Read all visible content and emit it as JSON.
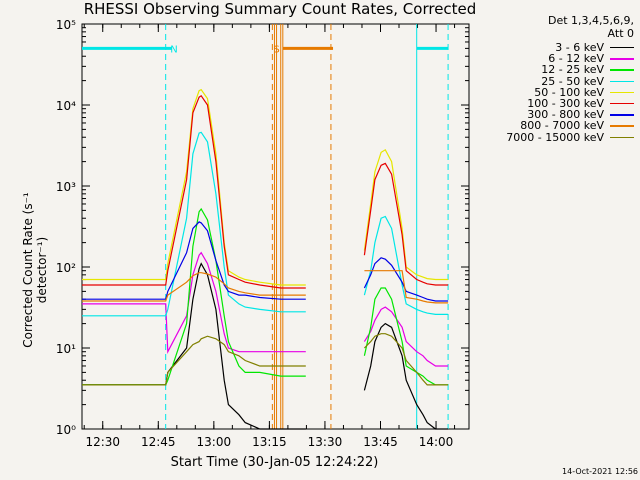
{
  "chart_data": {
    "type": "line",
    "title": "RHESSI Observing Summary Count Rates, Corrected",
    "xlabel": "Start Time (30-Jan-05 12:24:22)",
    "ylabel": "Corrected Count Rate (s⁻¹ detector⁻¹)",
    "x_ticks": [
      "12:30",
      "12:45",
      "13:00",
      "13:15",
      "13:30",
      "13:45",
      "14:00"
    ],
    "y_ticks": [
      "10⁰",
      "10¹",
      "10²",
      "10³",
      "10⁴",
      "10⁵"
    ],
    "ylim": [
      1,
      100000
    ],
    "yscale": "log",
    "detectors": "Det 1,3,4,5,6,9,",
    "attenuator": "Att 0",
    "legend_position": "right",
    "date_stamp": "14-Oct-2021 12:56",
    "series": [
      {
        "name": "3 - 6 keV",
        "color": "#000000",
        "x": [
          0,
          40,
          41,
          50,
          53,
          56,
          57,
          60,
          64,
          68,
          70,
          75,
          78,
          85,
          95,
          107,
          110,
          120,
          130,
          135,
          138,
          140,
          143,
          145,
          148,
          153,
          155,
          160,
          163,
          165,
          169,
          175
        ],
        "y": [
          3.5,
          3.5,
          5,
          10,
          40,
          95,
          110,
          80,
          30,
          4,
          2,
          1.5,
          1.2,
          1,
          1,
          1,
          1,
          1,
          1,
          3,
          6,
          12,
          18,
          20,
          18,
          8,
          4,
          2,
          1.5,
          1.2,
          1,
          1
        ]
      },
      {
        "name": "6 - 12 keV",
        "color": "#e600e6",
        "x": [
          0,
          40,
          41,
          50,
          53,
          56,
          57,
          60,
          64,
          68,
          70,
          75,
          78,
          85,
          95,
          107,
          110,
          120,
          130,
          135,
          138,
          140,
          143,
          145,
          148,
          153,
          155,
          160,
          163,
          165,
          169,
          175
        ],
        "y": [
          35,
          35,
          9,
          25,
          80,
          140,
          150,
          110,
          50,
          15,
          10,
          9,
          9,
          9,
          9,
          9,
          9,
          9,
          9,
          12,
          16,
          22,
          30,
          32,
          28,
          18,
          12,
          9,
          8,
          7,
          6,
          6
        ]
      },
      {
        "name": "12 - 25 keV",
        "color": "#00e600",
        "x": [
          0,
          40,
          41,
          50,
          53,
          56,
          57,
          60,
          64,
          68,
          70,
          75,
          78,
          85,
          95,
          107,
          110,
          120,
          130,
          135,
          138,
          140,
          143,
          145,
          148,
          153,
          155,
          160,
          163,
          165,
          169,
          175
        ],
        "y": [
          3.5,
          3.5,
          4,
          20,
          180,
          480,
          520,
          380,
          120,
          25,
          12,
          6,
          5,
          5,
          4.5,
          4.5,
          4.5,
          4.5,
          4.5,
          8,
          18,
          40,
          55,
          55,
          40,
          12,
          6,
          5,
          4.5,
          4,
          3.5,
          3.5
        ]
      },
      {
        "name": "25 - 50 keV",
        "color": "#00e6e6",
        "x": [
          0,
          40,
          41,
          50,
          53,
          56,
          57,
          60,
          64,
          68,
          70,
          75,
          78,
          85,
          95,
          107,
          110,
          120,
          130,
          135,
          138,
          140,
          143,
          145,
          148,
          153,
          155,
          160,
          163,
          165,
          169,
          175
        ],
        "y": [
          25,
          25,
          30,
          400,
          2500,
          4500,
          4600,
          3500,
          800,
          100,
          45,
          35,
          32,
          30,
          28,
          28,
          28,
          28,
          28,
          45,
          90,
          200,
          400,
          420,
          300,
          60,
          35,
          30,
          28,
          27,
          26,
          26
        ]
      },
      {
        "name": "50 - 100 keV",
        "color": "#e6e600",
        "x": [
          0,
          40,
          41,
          50,
          53,
          56,
          57,
          60,
          64,
          68,
          70,
          75,
          78,
          85,
          95,
          107,
          110,
          120,
          130,
          135,
          138,
          140,
          143,
          145,
          148,
          153,
          155,
          160,
          163,
          165,
          169,
          175
        ],
        "y": [
          70,
          70,
          110,
          1500,
          9000,
          15000,
          15500,
          12000,
          2500,
          200,
          90,
          75,
          70,
          65,
          60,
          60,
          60,
          60,
          60,
          160,
          600,
          1500,
          2600,
          2800,
          2000,
          300,
          100,
          80,
          75,
          72,
          70,
          70
        ]
      },
      {
        "name": "100 - 300 keV",
        "color": "#e60000",
        "x": [
          0,
          40,
          41,
          50,
          53,
          56,
          57,
          60,
          64,
          68,
          70,
          75,
          78,
          85,
          95,
          107,
          110,
          120,
          130,
          135,
          138,
          140,
          143,
          145,
          148,
          153,
          155,
          160,
          163,
          165,
          169,
          175
        ],
        "y": [
          60,
          60,
          90,
          1200,
          8000,
          12500,
          13000,
          10000,
          2000,
          180,
          80,
          70,
          65,
          60,
          55,
          55,
          55,
          55,
          55,
          140,
          500,
          1200,
          1800,
          1900,
          1400,
          250,
          90,
          70,
          65,
          62,
          60,
          60
        ]
      },
      {
        "name": "300 - 800 keV",
        "color": "#0000e6",
        "x": [
          0,
          40,
          41,
          50,
          53,
          56,
          57,
          60,
          64,
          68,
          70,
          75,
          78,
          85,
          95,
          107,
          110,
          120,
          130,
          135,
          138,
          140,
          143,
          145,
          148,
          153,
          155,
          160,
          163,
          165,
          169,
          175
        ],
        "y": [
          40,
          40,
          50,
          150,
          300,
          360,
          350,
          280,
          120,
          60,
          50,
          45,
          45,
          42,
          40,
          40,
          40,
          40,
          40,
          55,
          80,
          110,
          130,
          125,
          105,
          65,
          50,
          45,
          42,
          40,
          38,
          38
        ]
      },
      {
        "name": "800 - 7000 keV",
        "color": "#e67a00",
        "x": [
          0,
          40,
          41,
          50,
          53,
          56,
          57,
          60,
          64,
          68,
          70,
          75,
          78,
          85,
          95,
          107,
          110,
          120,
          130,
          135,
          138,
          140,
          143,
          145,
          148,
          153,
          155,
          160,
          163,
          165,
          169,
          175
        ],
        "y": [
          38,
          38,
          45,
          65,
          78,
          85,
          85,
          82,
          75,
          62,
          55,
          50,
          48,
          45,
          45,
          45,
          45,
          45,
          45,
          90,
          90,
          90,
          90,
          90,
          90,
          90,
          42,
          40,
          38,
          37,
          36,
          36
        ]
      },
      {
        "name": "7000 - 15000 keV",
        "color": "#808000",
        "x": [
          0,
          40,
          41,
          50,
          53,
          56,
          57,
          60,
          64,
          68,
          70,
          75,
          78,
          85,
          95,
          107,
          110,
          120,
          130,
          135,
          138,
          140,
          143,
          145,
          148,
          153,
          155,
          160,
          163,
          165,
          169,
          175
        ],
        "y": [
          3.5,
          3.5,
          5,
          9,
          11,
          12,
          13,
          14,
          13,
          11,
          9,
          8,
          7,
          6,
          6,
          6,
          6,
          6,
          6,
          10,
          12,
          14,
          15,
          15,
          14,
          10,
          7,
          5,
          4,
          3.5,
          3.5,
          3.5
        ]
      }
    ],
    "gap": [
      107,
      135
    ],
    "flag_bars": [
      {
        "label": "N",
        "color": "#00e6e6",
        "level": 50000,
        "segments": [
          [
            0,
            43
          ],
          [
            160,
            175
          ]
        ],
        "label_x": 44
      },
      {
        "label": "S",
        "color": "#e67a00",
        "level": 50000,
        "segments": [
          [
            96,
            120
          ]
        ],
        "label_x": 93
      }
    ],
    "vlines": [
      {
        "x": 40,
        "color": "#00e6e6",
        "style": "dashed"
      },
      {
        "x": 175,
        "color": "#00e6e6",
        "style": "dashed"
      },
      {
        "x": 91,
        "color": "#e67a00",
        "style": "dashed"
      },
      {
        "x": 119,
        "color": "#e67a00",
        "style": "dashed"
      },
      {
        "x": 160,
        "color": "#00e6e6",
        "style": "solid"
      },
      {
        "x": 92,
        "color": "#e67a00",
        "style": "solid"
      },
      {
        "x": 93,
        "color": "#e67a00",
        "style": "solid"
      },
      {
        "x": 95,
        "color": "#e67a00",
        "style": "solid"
      },
      {
        "x": 96,
        "color": "#e67a00",
        "style": "solid"
      }
    ]
  }
}
